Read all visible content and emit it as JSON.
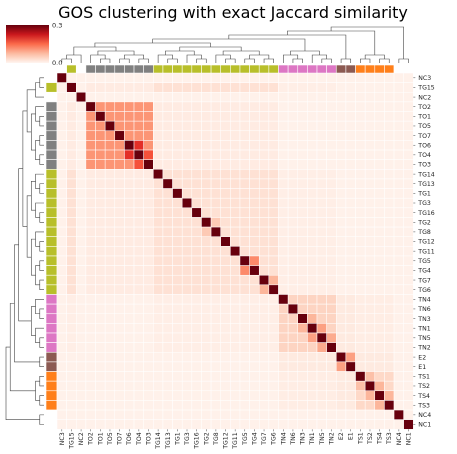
{
  "chart_data": {
    "type": "heatmap",
    "title": "GOS clustering with exact Jaccard similarity",
    "labels": [
      "NC3",
      "TG15",
      "NC2",
      "TO2",
      "TO1",
      "TO5",
      "TO7",
      "TO6",
      "TO4",
      "TO3",
      "TG14",
      "TG13",
      "TG1",
      "TG3",
      "TG16",
      "TG2",
      "TG8",
      "TG12",
      "TG11",
      "TG5",
      "TG4",
      "TG7",
      "TG6",
      "TN4",
      "TN6",
      "TN3",
      "TN1",
      "TN5",
      "TN2",
      "E2",
      "E1",
      "TS1",
      "TS2",
      "TS4",
      "TS3",
      "NC4",
      "NC1"
    ],
    "groups": [
      "NC",
      "TG",
      "NC",
      "TO",
      "TO",
      "TO",
      "TO",
      "TO",
      "TO",
      "TO",
      "TG",
      "TG",
      "TG",
      "TG",
      "TG",
      "TG",
      "TG",
      "TG",
      "TG",
      "TG",
      "TG",
      "TG",
      "TG",
      "TN",
      "TN",
      "TN",
      "TN",
      "TN",
      "TN",
      "E",
      "E",
      "TS",
      "TS",
      "TS",
      "TS",
      "NC",
      "NC"
    ],
    "group_colors": {
      "NC": "#ffffff",
      "TG": "#b8bf2a",
      "TO": "#808080",
      "TN": "#dd77c4",
      "E": "#8c5a52",
      "TS": "#ff7f1a"
    },
    "colorbar": {
      "min": 0.0,
      "max": 0.3,
      "tick_labels": [
        "0.0",
        "0.3"
      ],
      "cmap": "Reds"
    },
    "block_similarity": {
      "TO": 0.11,
      "TG": 0.035,
      "TN": 0.05,
      "E": 0.05,
      "TS": 0.045,
      "TO_TG": 0.018,
      "TG_TN": 0.012,
      "TN_E": 0.02,
      "E_TS": 0.02,
      "TN_TS": 0.015,
      "other": 0.008,
      "diagonal": 1.0
    },
    "notable_pairs": [
      {
        "a": "TO6",
        "b": "TO4",
        "value": 0.2
      },
      {
        "a": "TO4",
        "b": "TO3",
        "value": 0.17
      },
      {
        "a": "TG5",
        "b": "TG4",
        "value": 0.12
      },
      {
        "a": "TN1",
        "b": "TN5",
        "value": 0.1
      },
      {
        "a": "TN5",
        "b": "TN2",
        "value": 0.09
      },
      {
        "a": "TN3",
        "b": "TN1",
        "value": 0.08
      },
      {
        "a": "TS2",
        "b": "TS4",
        "value": 0.08
      },
      {
        "a": "TS4",
        "b": "TS3",
        "value": 0.08
      },
      {
        "a": "TS1",
        "b": "TS2",
        "value": 0.07
      },
      {
        "a": "E2",
        "b": "E1",
        "value": 0.1
      },
      {
        "a": "TG7",
        "b": "TG6",
        "value": 0.08
      },
      {
        "a": "TG2",
        "b": "TG8",
        "value": 0.06
      }
    ],
    "xlabel": "",
    "ylabel": ""
  }
}
